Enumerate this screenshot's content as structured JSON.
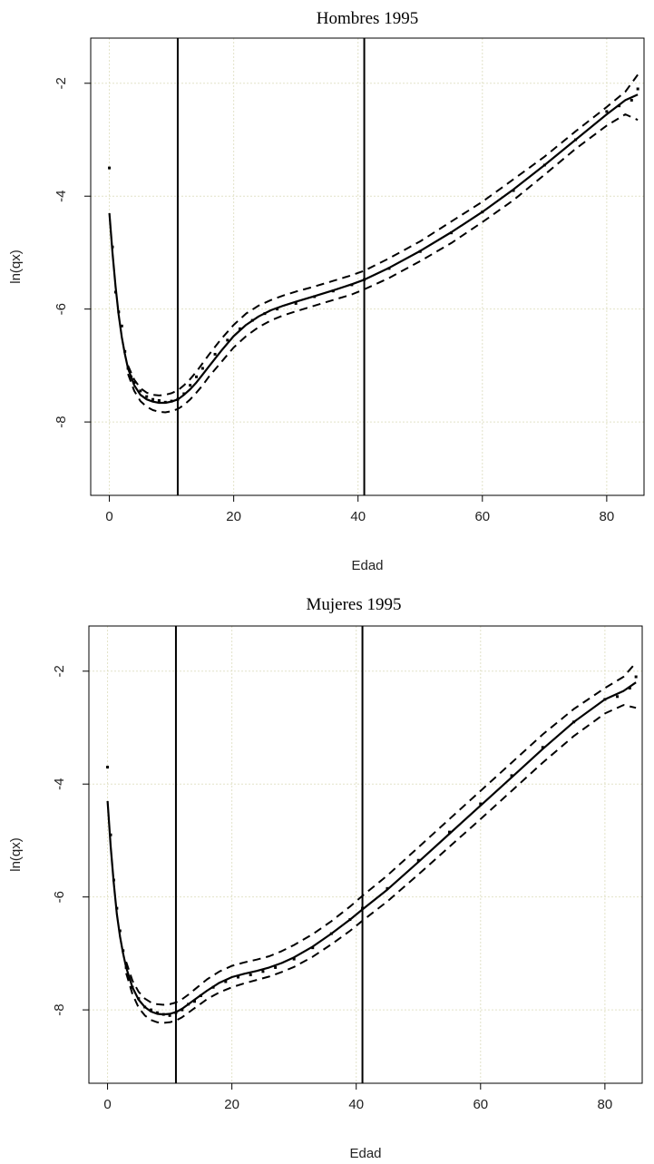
{
  "chart_data": [
    {
      "type": "line",
      "title": "Hombres 1995",
      "xlabel": "Edad",
      "ylabel": "ln(qx)",
      "xlim": [
        -3,
        86
      ],
      "ylim": [
        -9.3,
        -1.2
      ],
      "x_ticks": [
        0,
        20,
        40,
        60,
        80
      ],
      "y_ticks": [
        -2,
        -4,
        -6,
        -8
      ],
      "grid": true,
      "vertical_lines": [
        11,
        41
      ],
      "series": [
        {
          "style": "observed points",
          "x": [
            0,
            0.5,
            1,
            1.5,
            2,
            2.5,
            3,
            3.5,
            4,
            5,
            6,
            7,
            8,
            9,
            10,
            11,
            12,
            13,
            14,
            15,
            17,
            19,
            21,
            23,
            25,
            27,
            30,
            33,
            36,
            39,
            41,
            45,
            50,
            55,
            60,
            65,
            70,
            75,
            80,
            82,
            84,
            85
          ],
          "y": [
            -3.5,
            -4.9,
            -5.7,
            -6.05,
            -6.3,
            -6.75,
            -7.05,
            -7.2,
            -7.3,
            -7.45,
            -7.55,
            -7.6,
            -7.62,
            -7.65,
            -7.63,
            -7.6,
            -7.5,
            -7.35,
            -7.2,
            -7.05,
            -6.8,
            -6.55,
            -6.35,
            -6.2,
            -6.08,
            -6,
            -5.9,
            -5.78,
            -5.68,
            -5.57,
            -5.48,
            -5.28,
            -4.98,
            -4.65,
            -4.28,
            -3.9,
            -3.45,
            -3.0,
            -2.5,
            -2.4,
            -2.3,
            -2.1
          ]
        },
        {
          "style": "fitted solid",
          "x": [
            0,
            0.5,
            1,
            1.5,
            2,
            2.5,
            3,
            4,
            5,
            6,
            7,
            8,
            9,
            10,
            11,
            12,
            13,
            14,
            15,
            16,
            18,
            20,
            22,
            24,
            26,
            28,
            30,
            33,
            36,
            39,
            41,
            45,
            50,
            55,
            60,
            65,
            70,
            75,
            80,
            83,
            85
          ],
          "y": [
            -4.3,
            -5.0,
            -5.6,
            -6.1,
            -6.5,
            -6.8,
            -7.05,
            -7.35,
            -7.52,
            -7.6,
            -7.64,
            -7.66,
            -7.66,
            -7.64,
            -7.6,
            -7.52,
            -7.42,
            -7.3,
            -7.16,
            -7.02,
            -6.74,
            -6.48,
            -6.28,
            -6.13,
            -6.02,
            -5.94,
            -5.87,
            -5.77,
            -5.67,
            -5.56,
            -5.48,
            -5.27,
            -4.97,
            -4.64,
            -4.28,
            -3.88,
            -3.45,
            -3.0,
            -2.55,
            -2.3,
            -2.2
          ]
        },
        {
          "style": "upper band dashed",
          "x": [
            3,
            4,
            5,
            6,
            7,
            8,
            9,
            10,
            11,
            12,
            13,
            14,
            15,
            16,
            18,
            20,
            22,
            24,
            26,
            28,
            30,
            33,
            36,
            39,
            41,
            45,
            50,
            55,
            60,
            65,
            70,
            75,
            80,
            83,
            85
          ],
          "y": [
            -7.0,
            -7.25,
            -7.4,
            -7.48,
            -7.52,
            -7.53,
            -7.52,
            -7.49,
            -7.44,
            -7.35,
            -7.24,
            -7.11,
            -6.96,
            -6.81,
            -6.53,
            -6.28,
            -6.08,
            -5.94,
            -5.84,
            -5.76,
            -5.69,
            -5.6,
            -5.5,
            -5.4,
            -5.32,
            -5.1,
            -4.8,
            -4.45,
            -4.1,
            -3.7,
            -3.3,
            -2.85,
            -2.42,
            -2.15,
            -1.85
          ]
        },
        {
          "style": "lower band dashed",
          "x": [
            3,
            4,
            5,
            6,
            7,
            8,
            9,
            10,
            11,
            12,
            13,
            14,
            15,
            16,
            18,
            20,
            22,
            24,
            26,
            28,
            30,
            33,
            36,
            39,
            41,
            45,
            50,
            55,
            60,
            65,
            70,
            75,
            80,
            83,
            85
          ],
          "y": [
            -7.15,
            -7.45,
            -7.63,
            -7.73,
            -7.79,
            -7.82,
            -7.83,
            -7.81,
            -7.77,
            -7.7,
            -7.6,
            -7.48,
            -7.35,
            -7.2,
            -6.94,
            -6.68,
            -6.48,
            -6.32,
            -6.2,
            -6.11,
            -6.04,
            -5.94,
            -5.84,
            -5.74,
            -5.65,
            -5.45,
            -5.15,
            -4.83,
            -4.46,
            -4.07,
            -3.62,
            -3.16,
            -2.75,
            -2.55,
            -2.65
          ]
        }
      ]
    },
    {
      "type": "line",
      "title": "Mujeres 1995",
      "xlabel": "Edad",
      "ylabel": "ln(qx)",
      "xlim": [
        -3,
        86
      ],
      "ylim": [
        -9.3,
        -1.2
      ],
      "x_ticks": [
        0,
        20,
        40,
        60,
        80
      ],
      "y_ticks": [
        -2,
        -4,
        -6,
        -8
      ],
      "grid": true,
      "vertical_lines": [
        11,
        41
      ],
      "series": [
        {
          "style": "observed points",
          "x": [
            0,
            0.5,
            1,
            1.5,
            2,
            2.5,
            3,
            3.5,
            4,
            5,
            6,
            7,
            8,
            9,
            10,
            11,
            12,
            13,
            14,
            15,
            17,
            19,
            21,
            23,
            25,
            27,
            30,
            33,
            36,
            39,
            41,
            45,
            50,
            55,
            60,
            65,
            70,
            75,
            80,
            82,
            84,
            85
          ],
          "y": [
            -3.7,
            -4.9,
            -5.7,
            -6.2,
            -6.6,
            -6.95,
            -7.25,
            -7.45,
            -7.6,
            -7.8,
            -7.95,
            -8.0,
            -8.05,
            -8.08,
            -8.1,
            -8.05,
            -8.0,
            -7.9,
            -7.85,
            -7.75,
            -7.6,
            -7.5,
            -7.42,
            -7.38,
            -7.32,
            -7.25,
            -7.1,
            -6.9,
            -6.65,
            -6.4,
            -6.2,
            -5.85,
            -5.35,
            -4.85,
            -4.35,
            -3.85,
            -3.35,
            -2.9,
            -2.5,
            -2.45,
            -2.3,
            -2.1
          ]
        },
        {
          "style": "fitted solid",
          "x": [
            0,
            0.5,
            1,
            1.5,
            2,
            2.5,
            3,
            4,
            5,
            6,
            7,
            8,
            9,
            10,
            11,
            12,
            13,
            14,
            15,
            16,
            18,
            20,
            22,
            24,
            26,
            28,
            30,
            33,
            36,
            39,
            41,
            45,
            50,
            55,
            60,
            65,
            70,
            75,
            80,
            83,
            85
          ],
          "y": [
            -4.3,
            -5.1,
            -5.75,
            -6.3,
            -6.7,
            -7.0,
            -7.25,
            -7.6,
            -7.82,
            -7.95,
            -8.03,
            -8.07,
            -8.08,
            -8.07,
            -8.04,
            -7.98,
            -7.9,
            -7.82,
            -7.74,
            -7.66,
            -7.52,
            -7.42,
            -7.36,
            -7.31,
            -7.25,
            -7.17,
            -7.07,
            -6.88,
            -6.65,
            -6.4,
            -6.22,
            -5.87,
            -5.38,
            -4.88,
            -4.38,
            -3.88,
            -3.38,
            -2.9,
            -2.5,
            -2.35,
            -2.2
          ]
        },
        {
          "style": "upper band dashed",
          "x": [
            3,
            4,
            5,
            6,
            7,
            8,
            9,
            10,
            11,
            12,
            13,
            14,
            15,
            16,
            18,
            20,
            22,
            24,
            26,
            28,
            30,
            33,
            36,
            39,
            41,
            45,
            50,
            55,
            60,
            65,
            70,
            75,
            80,
            83,
            85
          ],
          "y": [
            -7.15,
            -7.48,
            -7.68,
            -7.8,
            -7.87,
            -7.9,
            -7.91,
            -7.9,
            -7.87,
            -7.81,
            -7.73,
            -7.64,
            -7.55,
            -7.46,
            -7.32,
            -7.22,
            -7.16,
            -7.11,
            -7.05,
            -6.96,
            -6.85,
            -6.66,
            -6.43,
            -6.17,
            -5.98,
            -5.62,
            -5.12,
            -4.62,
            -4.12,
            -3.62,
            -3.12,
            -2.67,
            -2.3,
            -2.1,
            -1.85
          ]
        },
        {
          "style": "lower band dashed",
          "x": [
            3,
            4,
            5,
            6,
            7,
            8,
            9,
            10,
            11,
            12,
            13,
            14,
            15,
            16,
            18,
            20,
            22,
            24,
            26,
            28,
            30,
            33,
            36,
            39,
            41,
            45,
            50,
            55,
            60,
            65,
            70,
            75,
            80,
            83,
            85
          ],
          "y": [
            -7.35,
            -7.72,
            -7.96,
            -8.1,
            -8.18,
            -8.22,
            -8.23,
            -8.22,
            -8.19,
            -8.13,
            -8.05,
            -7.97,
            -7.89,
            -7.81,
            -7.69,
            -7.6,
            -7.53,
            -7.47,
            -7.41,
            -7.33,
            -7.24,
            -7.06,
            -6.84,
            -6.6,
            -6.42,
            -6.08,
            -5.6,
            -5.11,
            -4.62,
            -4.12,
            -3.62,
            -3.15,
            -2.75,
            -2.6,
            -2.65
          ]
        }
      ]
    }
  ]
}
